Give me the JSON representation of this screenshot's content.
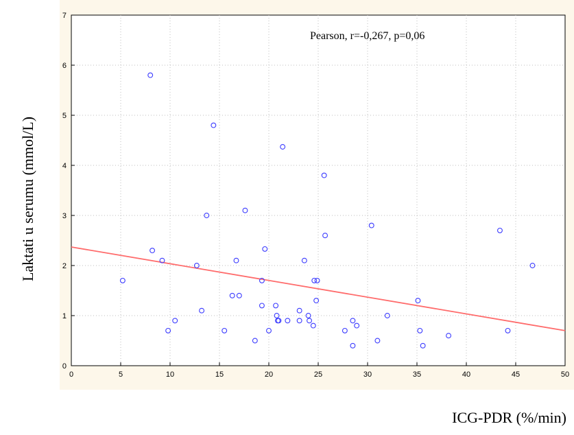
{
  "chart_data": {
    "type": "scatter",
    "xlabel": "ICG-PDR (%/min)",
    "ylabel": "Laktati u serumu (mmol/L)",
    "annotation": "Pearson, r=-0,267, p=0,06",
    "xlim": [
      0,
      50
    ],
    "ylim": [
      0,
      7
    ],
    "x_ticks": [
      "0",
      "5",
      "10",
      "15",
      "20",
      "25",
      "30",
      "35",
      "40",
      "45",
      "50"
    ],
    "y_ticks": [
      "0",
      "1",
      "2",
      "3",
      "4",
      "5",
      "6",
      "7"
    ],
    "grid": true,
    "points": [
      [
        5.2,
        1.7
      ],
      [
        8.0,
        5.8
      ],
      [
        8.2,
        2.3
      ],
      [
        9.2,
        2.1
      ],
      [
        9.8,
        0.7
      ],
      [
        10.5,
        0.9
      ],
      [
        12.7,
        2.0
      ],
      [
        13.2,
        1.1
      ],
      [
        13.7,
        3.0
      ],
      [
        14.4,
        4.8
      ],
      [
        15.5,
        0.7
      ],
      [
        16.3,
        1.4
      ],
      [
        16.7,
        2.1
      ],
      [
        17.0,
        1.4
      ],
      [
        17.6,
        3.1
      ],
      [
        18.6,
        0.5
      ],
      [
        19.3,
        1.7
      ],
      [
        19.3,
        1.2
      ],
      [
        19.6,
        2.33
      ],
      [
        20.0,
        0.7
      ],
      [
        20.7,
        1.2
      ],
      [
        20.8,
        1.0
      ],
      [
        20.9,
        0.9
      ],
      [
        21.0,
        0.9
      ],
      [
        21.4,
        4.37
      ],
      [
        21.9,
        0.9
      ],
      [
        23.1,
        1.1
      ],
      [
        23.1,
        0.9
      ],
      [
        23.6,
        2.1
      ],
      [
        24.0,
        1.0
      ],
      [
        24.1,
        0.9
      ],
      [
        24.5,
        0.8
      ],
      [
        24.6,
        1.7
      ],
      [
        24.8,
        1.3
      ],
      [
        24.9,
        1.7
      ],
      [
        25.6,
        3.8
      ],
      [
        25.7,
        2.6
      ],
      [
        27.7,
        0.7
      ],
      [
        28.5,
        0.9
      ],
      [
        28.5,
        0.4
      ],
      [
        28.9,
        0.8
      ],
      [
        30.4,
        2.8
      ],
      [
        31.0,
        0.5
      ],
      [
        32.0,
        1.0
      ],
      [
        35.1,
        1.3
      ],
      [
        35.3,
        0.7
      ],
      [
        35.6,
        0.4
      ],
      [
        38.2,
        0.6
      ],
      [
        43.4,
        2.7
      ],
      [
        44.2,
        0.7
      ],
      [
        46.7,
        2.0
      ]
    ],
    "regression": {
      "x": [
        0,
        50
      ],
      "y": [
        2.37,
        0.7
      ]
    },
    "colors": {
      "points": "#3b3bff",
      "regression": "#ff6b6b",
      "background": "#fdf7ea",
      "grid": "#bdbdbd"
    }
  }
}
